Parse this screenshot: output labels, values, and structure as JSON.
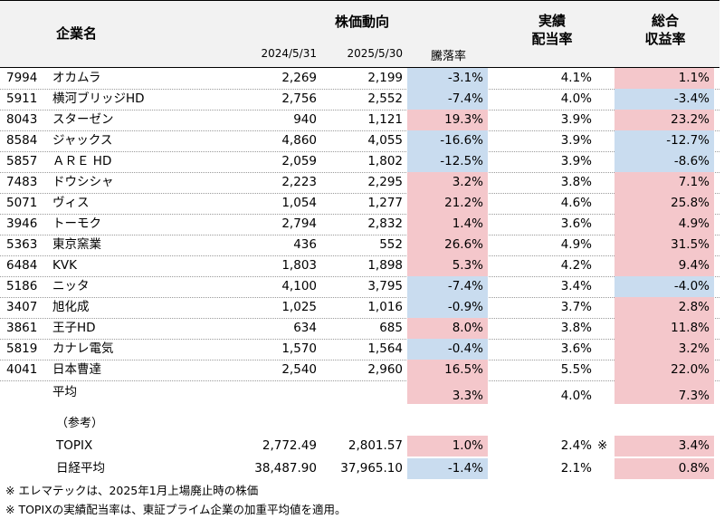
{
  "header": {
    "company": "企業名",
    "stock_trend": "株価動向",
    "date1": "2024/5/31",
    "date2": "2025/5/30",
    "change": "騰落率",
    "dividend_l1": "実績",
    "dividend_l2": "配当率",
    "total_l1": "総合",
    "total_l2": "収益率"
  },
  "rows": [
    {
      "code": "7994",
      "name": "オカムラ",
      "p1": "2,269",
      "p2": "2,199",
      "chg": "-3.1%",
      "div": "4.1%",
      "tot": "1.1%",
      "chg_sign": "neg",
      "tot_sign": "pos"
    },
    {
      "code": "5911",
      "name": "横河ブリッジHD",
      "p1": "2,756",
      "p2": "2,552",
      "chg": "-7.4%",
      "div": "4.0%",
      "tot": "-3.4%",
      "chg_sign": "neg",
      "tot_sign": "neg"
    },
    {
      "code": "8043",
      "name": "スターゼン",
      "p1": "940",
      "p2": "1,121",
      "chg": "19.3%",
      "div": "3.9%",
      "tot": "23.2%",
      "chg_sign": "pos",
      "tot_sign": "pos"
    },
    {
      "code": "8584",
      "name": "ジャックス",
      "p1": "4,860",
      "p2": "4,055",
      "chg": "-16.6%",
      "div": "3.9%",
      "tot": "-12.7%",
      "chg_sign": "neg",
      "tot_sign": "neg"
    },
    {
      "code": "5857",
      "name": "ＡＲＥ HD",
      "p1": "2,059",
      "p2": "1,802",
      "chg": "-12.5%",
      "div": "3.9%",
      "tot": "-8.6%",
      "chg_sign": "neg",
      "tot_sign": "neg"
    },
    {
      "code": "7483",
      "name": "ドウシシャ",
      "p1": "2,223",
      "p2": "2,295",
      "chg": "3.2%",
      "div": "3.8%",
      "tot": "7.1%",
      "chg_sign": "pos",
      "tot_sign": "pos"
    },
    {
      "code": "5071",
      "name": "ヴィス",
      "p1": "1,054",
      "p2": "1,277",
      "chg": "21.2%",
      "div": "4.6%",
      "tot": "25.8%",
      "chg_sign": "pos",
      "tot_sign": "pos"
    },
    {
      "code": "3946",
      "name": "トーモク",
      "p1": "2,794",
      "p2": "2,832",
      "chg": "1.4%",
      "div": "3.6%",
      "tot": "4.9%",
      "chg_sign": "pos",
      "tot_sign": "pos"
    },
    {
      "code": "5363",
      "name": "東京窯業",
      "p1": "436",
      "p2": "552",
      "chg": "26.6%",
      "div": "4.9%",
      "tot": "31.5%",
      "chg_sign": "pos",
      "tot_sign": "pos"
    },
    {
      "code": "6484",
      "name": "KVK",
      "p1": "1,803",
      "p2": "1,898",
      "chg": "5.3%",
      "div": "4.2%",
      "tot": "9.4%",
      "chg_sign": "pos",
      "tot_sign": "pos"
    },
    {
      "code": "5186",
      "name": "ニッタ",
      "p1": "4,100",
      "p2": "3,795",
      "chg": "-7.4%",
      "div": "3.4%",
      "tot": "-4.0%",
      "chg_sign": "neg",
      "tot_sign": "neg"
    },
    {
      "code": "3407",
      "name": "旭化成",
      "p1": "1,025",
      "p2": "1,016",
      "chg": "-0.9%",
      "div": "3.7%",
      "tot": "2.8%",
      "chg_sign": "neg",
      "tot_sign": "pos"
    },
    {
      "code": "3861",
      "name": "王子HD",
      "p1": "634",
      "p2": "685",
      "chg": "8.0%",
      "div": "3.8%",
      "tot": "11.8%",
      "chg_sign": "pos",
      "tot_sign": "pos"
    },
    {
      "code": "5819",
      "name": "カナレ電気",
      "p1": "1,570",
      "p2": "1,564",
      "chg": "-0.4%",
      "div": "3.6%",
      "tot": "3.2%",
      "chg_sign": "neg",
      "tot_sign": "pos"
    },
    {
      "code": "4041",
      "name": "日本曹達",
      "p1": "2,540",
      "p2": "2,960",
      "chg": "16.5%",
      "div": "5.5%",
      "tot": "22.0%",
      "chg_sign": "pos",
      "tot_sign": "pos"
    }
  ],
  "average": {
    "label": "平均",
    "chg": "3.3%",
    "div": "4.0%",
    "tot": "7.3%"
  },
  "reference": {
    "label": "（参考）",
    "topix": {
      "name": "TOPIX",
      "p1": "2,772.49",
      "p2": "2,801.57",
      "chg": "1.0%",
      "div": "2.4%",
      "mark": "※",
      "tot": "3.4%"
    },
    "nikkei": {
      "name": "日経平均",
      "p1": "38,487.90",
      "p2": "37,965.10",
      "chg": "-1.4%",
      "div": "2.1%",
      "tot": "0.8%"
    }
  },
  "notes": [
    "※ エレマテックは、2025年1月上場廃止時の株価",
    "※ TOPIXの実績配当率は、東証プライム企業の加重平均値を適用。"
  ],
  "colors": {
    "positive": "#f4c7cb",
    "negative": "#c9dcef",
    "header_bg": "#f2f2f2"
  }
}
